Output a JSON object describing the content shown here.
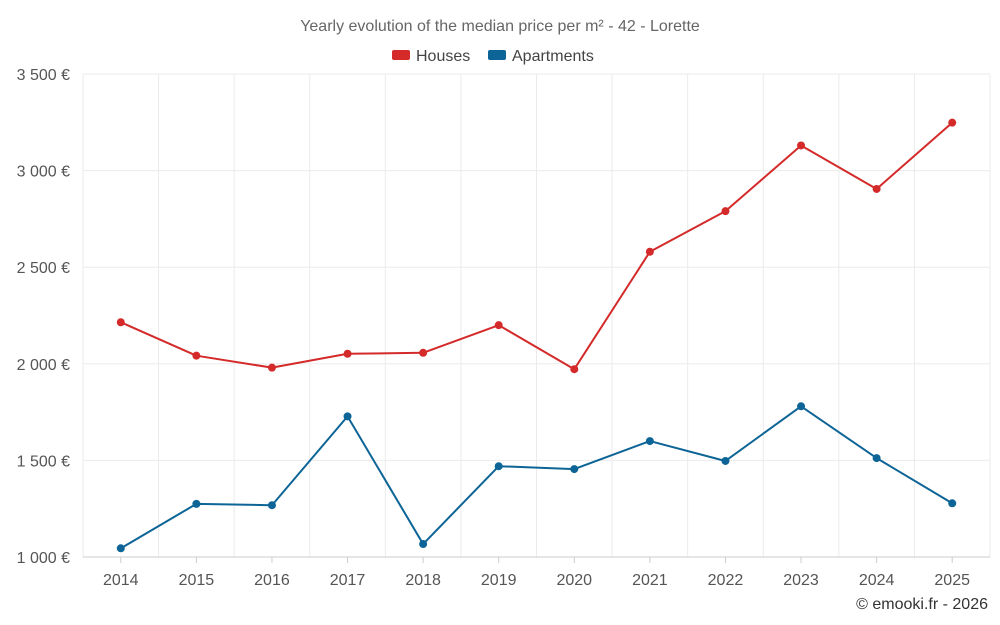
{
  "chart_data": {
    "type": "line",
    "title": "Yearly evolution of the median price per m² - 42 - Lorette",
    "categories": [
      "2014",
      "2015",
      "2016",
      "2017",
      "2018",
      "2019",
      "2020",
      "2021",
      "2022",
      "2023",
      "2024",
      "2025"
    ],
    "series": [
      {
        "name": "Houses",
        "color": "#d42a2a",
        "values": [
          2215,
          2042,
          1980,
          2052,
          2057,
          2200,
          1972,
          2580,
          2790,
          3130,
          2905,
          3248
        ]
      },
      {
        "name": "Apartments",
        "color": "#0d6496",
        "values": [
          1045,
          1275,
          1268,
          1728,
          1067,
          1470,
          1455,
          1600,
          1497,
          1780,
          1512,
          1278
        ]
      }
    ],
    "y_ticks": [
      1000,
      1500,
      2000,
      2500,
      3000,
      3500
    ],
    "y_tick_labels": [
      "1 000 €",
      "1 500 €",
      "2 000 €",
      "2 500 €",
      "3 000 €",
      "3 500 €"
    ],
    "ylim": [
      1000,
      3500
    ],
    "grid": true,
    "legend_position": "top-center",
    "xlabel": "",
    "ylabel": ""
  },
  "credit": "© emooki.fr - 2026"
}
